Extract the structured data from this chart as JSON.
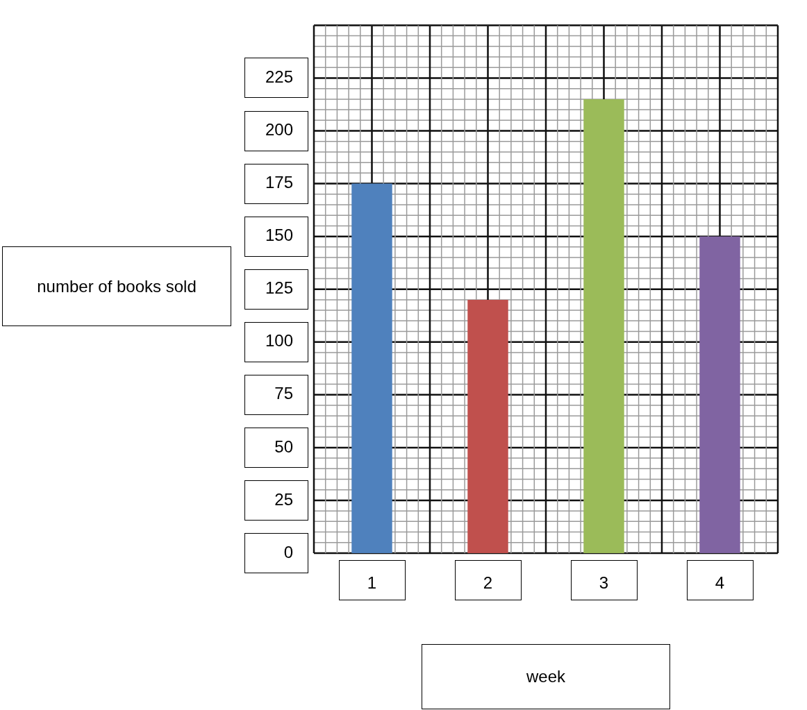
{
  "chart_data": {
    "type": "bar",
    "xlabel": "week",
    "ylabel": "number of books sold",
    "categories": [
      "1",
      "2",
      "3",
      "4"
    ],
    "values": [
      175,
      120,
      215,
      150
    ],
    "colors": [
      "#4f81bd",
      "#c0504d",
      "#9bbb59",
      "#8064a2"
    ],
    "ylim": [
      0,
      250
    ],
    "yticks": [
      0,
      25,
      50,
      75,
      100,
      125,
      150,
      175,
      200,
      225
    ],
    "grid": true,
    "legend": false
  }
}
